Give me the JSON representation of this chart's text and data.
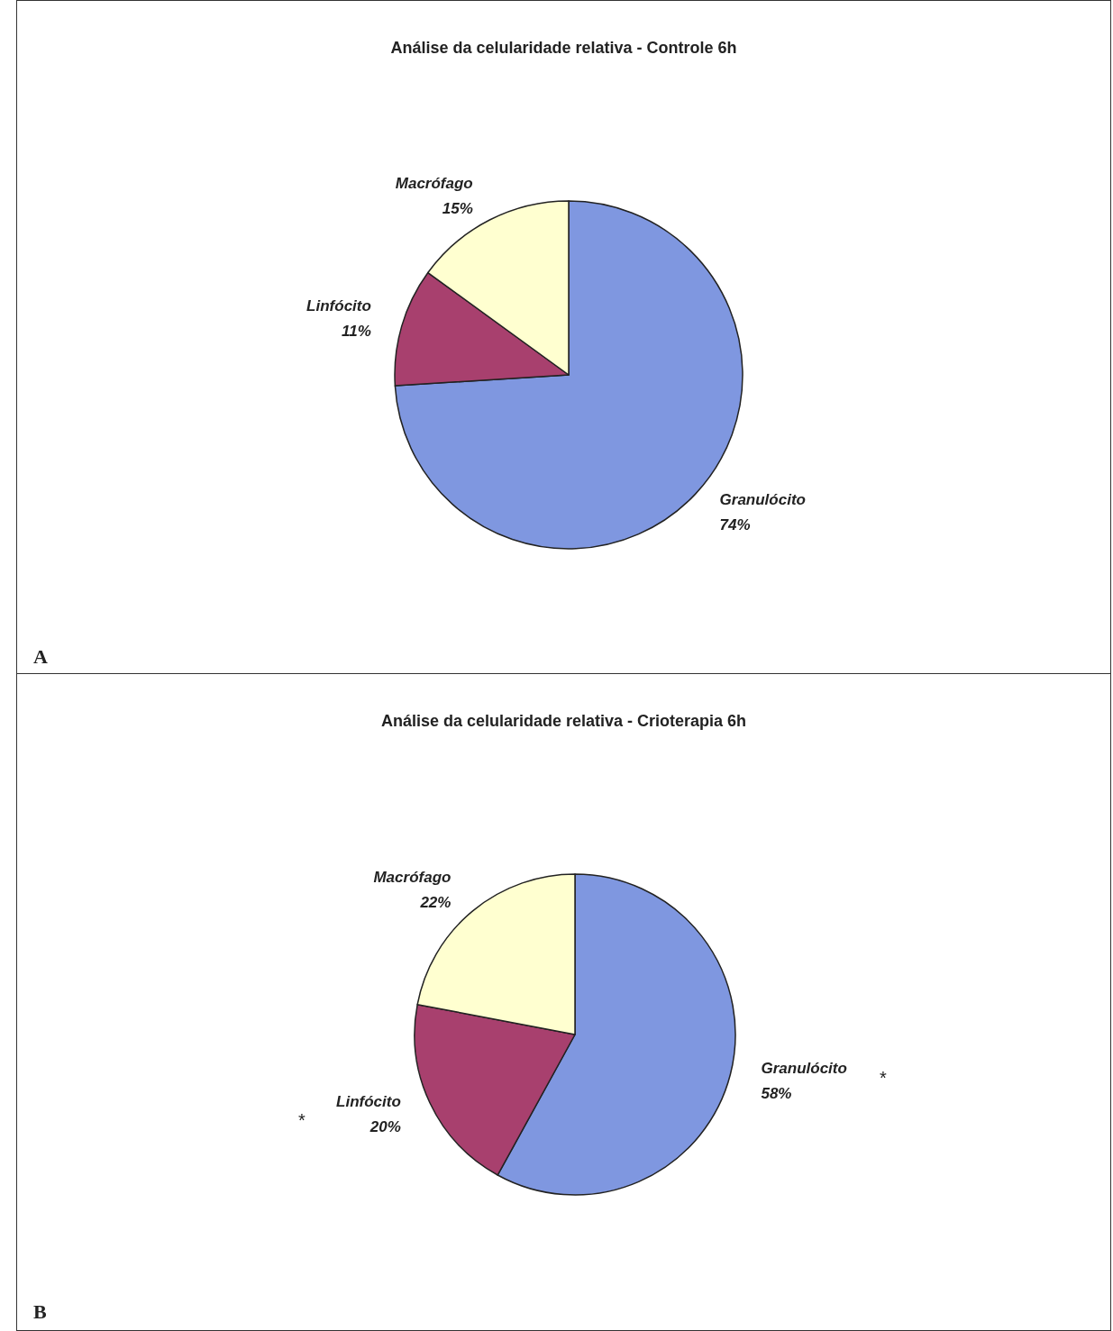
{
  "chart_data": [
    {
      "type": "pie",
      "title": "Análise da celularidade relativa - Controle 6h",
      "categories": [
        "Granulócito",
        "Linfócito",
        "Macrófago"
      ],
      "values": [
        74,
        11,
        15
      ],
      "value_labels": [
        "74%",
        "11%",
        "15%"
      ],
      "colors": [
        "#7f97e0",
        "#a8406e",
        "#ffffd0"
      ],
      "annotations": [
        "A"
      ]
    },
    {
      "type": "pie",
      "title": "Análise da celularidade relativa - Crioterapia 6h",
      "categories": [
        "Granulócito",
        "Linfócito",
        "Macrófago"
      ],
      "values": [
        58,
        20,
        22
      ],
      "value_labels": [
        "58%",
        "20%",
        "22%"
      ],
      "colors": [
        "#7f97e0",
        "#a8406e",
        "#ffffd0"
      ],
      "annotations": [
        "B",
        "*",
        "*"
      ]
    }
  ]
}
